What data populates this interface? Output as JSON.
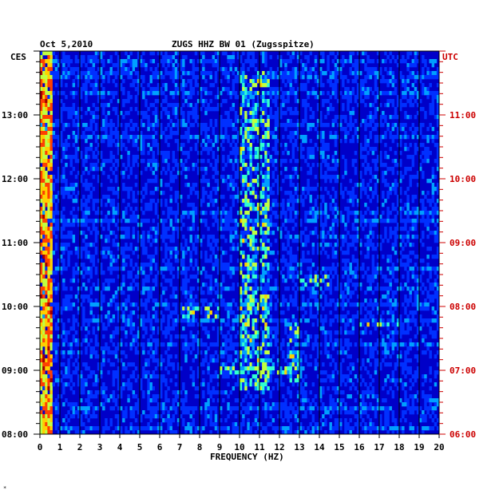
{
  "chart_data": {
    "type": "heatmap",
    "title_date": "Oct 5,2010",
    "title_station": "ZUGS HHZ BW 01 (Zugsspitze)",
    "left_axis_unit": "CES",
    "right_axis_unit": "UTC",
    "xlabel": "FREQUENCY (HZ)",
    "xlim": [
      0,
      20
    ],
    "x_ticks": [
      "0",
      "1",
      "2",
      "3",
      "4",
      "5",
      "6",
      "7",
      "8",
      "9",
      "10",
      "11",
      "12",
      "13",
      "14",
      "15",
      "16",
      "17",
      "18",
      "19",
      "20"
    ],
    "left_ticks": [
      "13:00",
      "12:00",
      "11:00",
      "10:00",
      "09:00",
      "08:00"
    ],
    "right_ticks": [
      "11:00",
      "10:00",
      "09:00",
      "08:00",
      "07:00",
      "06:00"
    ],
    "time_range_local": [
      "08:00",
      "14:00"
    ],
    "colormap": [
      "#000080",
      "#0000c8",
      "#0030ff",
      "#00a0ff",
      "#30ffd0",
      "#c0ff40",
      "#ffd000",
      "#ff4000",
      "#a00000"
    ],
    "features": [
      {
        "freq_range": [
          0,
          0.6
        ],
        "intensity": "high",
        "time_range": [
          "08:00",
          "14:00"
        ]
      },
      {
        "freq_range": [
          10.0,
          11.5
        ],
        "intensity": "medium",
        "time_range": [
          "08:40",
          "13:40"
        ]
      },
      {
        "freq_range": [
          7.0,
          9.0
        ],
        "intensity": "medium",
        "time_range": [
          "09:50",
          "10:00"
        ]
      },
      {
        "freq_range": [
          9.0,
          12.5
        ],
        "intensity": "medium",
        "time_range": [
          "08:55",
          "09:05"
        ]
      },
      {
        "freq_range": [
          16.0,
          18.0
        ],
        "intensity": "medium",
        "time_range": [
          "09:40",
          "09:45"
        ]
      },
      {
        "freq_range": [
          13.0,
          14.5
        ],
        "intensity": "medium",
        "time_range": [
          "10:20",
          "10:30"
        ]
      },
      {
        "freq_range": [
          12.5,
          13.0
        ],
        "intensity": "medium",
        "time_range": [
          "08:45",
          "09:45"
        ]
      }
    ]
  }
}
